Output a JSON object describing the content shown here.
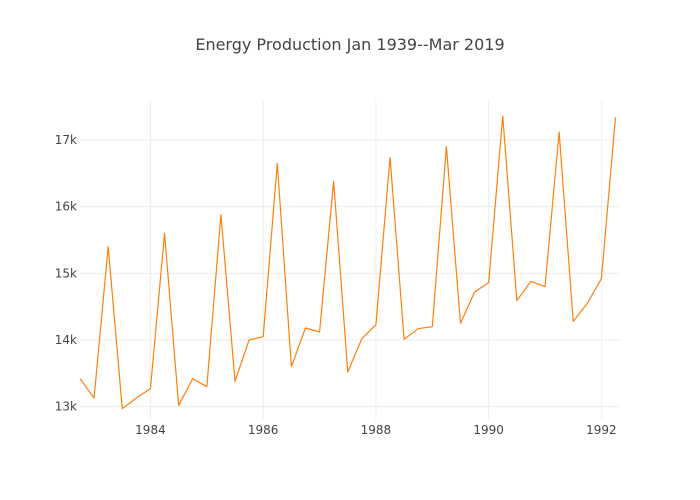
{
  "chart_data": {
    "type": "line",
    "title": "Energy Production Jan 1939--Mar 2019",
    "xlabel": "",
    "ylabel": "",
    "grid": true,
    "legend": "none",
    "xlim": [
      1982.75,
      1992.33
    ],
    "ylim": [
      12800,
      17600
    ],
    "x_ticks": [
      1984,
      1986,
      1988,
      1990,
      1992
    ],
    "x_tick_labels": [
      "1984",
      "1986",
      "1988",
      "1990",
      "1992"
    ],
    "y_ticks": [
      13000,
      14000,
      15000,
      16000,
      17000
    ],
    "y_tick_labels": [
      "13k",
      "14k",
      "15k",
      "16k",
      "17k"
    ],
    "series": [
      {
        "color": "#ff7f0e",
        "x": [
          1982.75,
          1983.0,
          1983.25,
          1983.5,
          1983.75,
          1984.0,
          1984.25,
          1984.5,
          1984.75,
          1985.0,
          1985.25,
          1985.5,
          1985.75,
          1986.0,
          1986.25,
          1986.5,
          1986.75,
          1987.0,
          1987.25,
          1987.5,
          1987.75,
          1988.0,
          1988.25,
          1988.5,
          1988.75,
          1989.0,
          1989.25,
          1989.5,
          1989.75,
          1990.0,
          1990.25,
          1990.5,
          1990.75,
          1991.0,
          1991.25,
          1991.5,
          1991.75,
          1992.0,
          1992.25
        ],
        "y": [
          13420,
          13130,
          15400,
          12970,
          13130,
          13270,
          15600,
          13020,
          13420,
          13300,
          15880,
          13380,
          14000,
          14050,
          16650,
          13600,
          14180,
          14120,
          16380,
          13520,
          14020,
          14230,
          16740,
          14010,
          14170,
          14200,
          16900,
          14250,
          14720,
          14860,
          17360,
          14590,
          14880,
          14800,
          17120,
          14280,
          14550,
          14920,
          17340
        ]
      }
    ]
  }
}
